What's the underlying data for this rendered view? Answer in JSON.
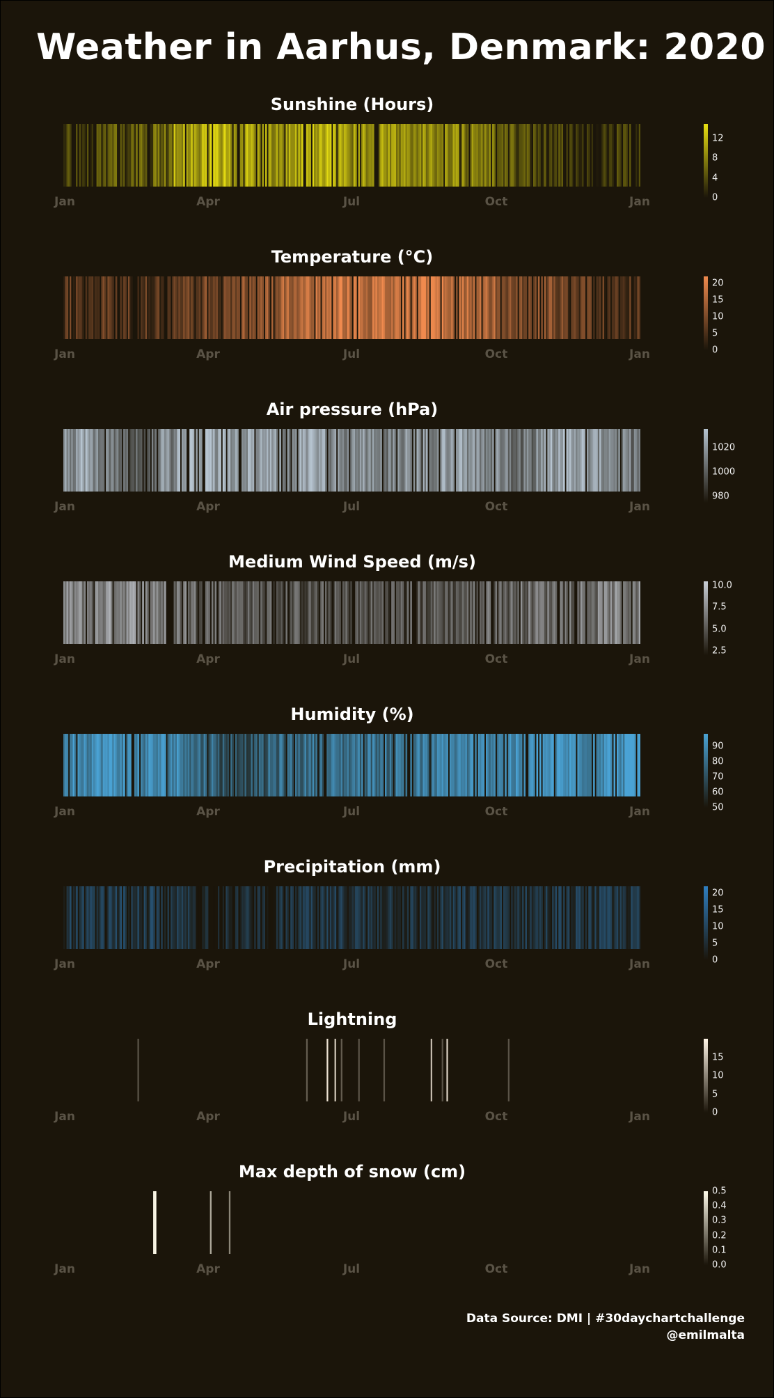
{
  "title": "Weather in Aarhus, Denmark: 2020",
  "caption": {
    "line1": "Data Source: DMI | #30daychartchallenge",
    "line2": "@emilmalta"
  },
  "colors": {
    "background": "#1b150a",
    "low": "#1b150a"
  },
  "chart_data": [
    {
      "type": "heatmap",
      "title": "Sunshine (Hours)",
      "color": "#e8df12",
      "xlabels": [
        "Jan",
        "Apr",
        "Jul",
        "Oct",
        "Jan"
      ],
      "legend_ticks": [
        0,
        4,
        8,
        12
      ],
      "legend_range": [
        0,
        15
      ],
      "pattern": [
        [
          1,
          10,
          0.8
        ],
        [
          11,
          25,
          1.2
        ],
        [
          26,
          35,
          2.5
        ],
        [
          36,
          46,
          1.8
        ],
        [
          47,
          55,
          3.0
        ],
        [
          56,
          70,
          4.0
        ],
        [
          71,
          90,
          10.0
        ],
        [
          91,
          120,
          10.5
        ],
        [
          121,
          150,
          8.5
        ],
        [
          151,
          182,
          10.5
        ],
        [
          183,
          213,
          8.0
        ],
        [
          214,
          244,
          8.0
        ],
        [
          245,
          262,
          6.5
        ],
        [
          263,
          275,
          5.5
        ],
        [
          276,
          285,
          3.0
        ],
        [
          286,
          295,
          2.0
        ],
        [
          296,
          305,
          1.0
        ],
        [
          306,
          322,
          0.5
        ],
        [
          323,
          340,
          0.2
        ],
        [
          341,
          366,
          0.2
        ]
      ],
      "x": [
        1,
        366
      ]
    },
    {
      "type": "heatmap",
      "title": "Temperature (°C)",
      "color": "#ef8a4e",
      "xlabels": [
        "Jan",
        "Apr",
        "Jul",
        "Oct",
        "Jan"
      ],
      "legend_ticks": [
        0,
        5,
        10,
        15,
        20
      ],
      "legend_range": [
        0,
        22
      ],
      "pattern": [
        [
          1,
          20,
          3.0
        ],
        [
          21,
          40,
          3.5
        ],
        [
          41,
          55,
          4.0
        ],
        [
          56,
          70,
          2.5
        ],
        [
          71,
          90,
          4.5
        ],
        [
          91,
          105,
          7.0
        ],
        [
          106,
          121,
          9.0
        ],
        [
          122,
          135,
          10.0
        ],
        [
          136,
          152,
          13.0
        ],
        [
          153,
          166,
          16.0
        ],
        [
          167,
          182,
          16.5
        ],
        [
          183,
          200,
          16.0
        ],
        [
          201,
          212,
          17.0
        ],
        [
          213,
          230,
          19.0
        ],
        [
          231,
          244,
          17.5
        ],
        [
          245,
          258,
          15.0
        ],
        [
          259,
          274,
          12.5
        ],
        [
          275,
          290,
          10.5
        ],
        [
          291,
          305,
          9.5
        ],
        [
          306,
          320,
          7.5
        ],
        [
          321,
          335,
          5.0
        ],
        [
          336,
          352,
          3.5
        ],
        [
          353,
          366,
          2.5
        ]
      ],
      "x": [
        1,
        366
      ]
    },
    {
      "type": "heatmap",
      "title": "Air pressure (hPa)",
      "color": "#b6c4d0",
      "xlabels": [
        "Jan",
        "Apr",
        "Jul",
        "Oct",
        "Jan"
      ],
      "legend_ticks": [
        980,
        1000,
        1020
      ],
      "legend_range": [
        975,
        1035
      ],
      "pattern": [
        [
          1,
          8,
          1015
        ],
        [
          9,
          16,
          1025
        ],
        [
          17,
          26,
          1012
        ],
        [
          27,
          35,
          1008
        ],
        [
          36,
          50,
          995
        ],
        [
          51,
          60,
          1000
        ],
        [
          61,
          72,
          1010
        ],
        [
          73,
          80,
          1020
        ],
        [
          81,
          95,
          1028
        ],
        [
          96,
          104,
          1022
        ],
        [
          105,
          120,
          1018
        ],
        [
          121,
          135,
          1020
        ],
        [
          136,
          150,
          1012
        ],
        [
          151,
          160,
          1022
        ],
        [
          161,
          172,
          1015
        ],
        [
          173,
          185,
          1010
        ],
        [
          186,
          205,
          1012
        ],
        [
          206,
          216,
          1008
        ],
        [
          217,
          226,
          1016
        ],
        [
          227,
          240,
          1013
        ],
        [
          241,
          254,
          1018
        ],
        [
          255,
          268,
          1012
        ],
        [
          269,
          282,
          1008
        ],
        [
          283,
          300,
          1005
        ],
        [
          301,
          315,
          1020
        ],
        [
          316,
          330,
          1024
        ],
        [
          331,
          350,
          1015
        ],
        [
          351,
          366,
          1005
        ]
      ],
      "x": [
        1,
        366
      ]
    },
    {
      "type": "heatmap",
      "title": "Medium Wind Speed (m/s)",
      "color": "#c9ced6",
      "xlabels": [
        "Jan",
        "Apr",
        "Jul",
        "Oct",
        "Jan"
      ],
      "legend_ticks": [
        2.5,
        5.0,
        7.5,
        10.0
      ],
      "legend_range": [
        2.0,
        10.5
      ],
      "pattern": [
        [
          1,
          20,
          6.2
        ],
        [
          21,
          40,
          6.8
        ],
        [
          41,
          60,
          7.0
        ],
        [
          61,
          80,
          5.8
        ],
        [
          81,
          100,
          5.0
        ],
        [
          101,
          120,
          4.5
        ],
        [
          121,
          145,
          4.0
        ],
        [
          146,
          170,
          3.8
        ],
        [
          171,
          200,
          3.8
        ],
        [
          201,
          230,
          4.0
        ],
        [
          231,
          260,
          4.2
        ],
        [
          261,
          290,
          4.8
        ],
        [
          291,
          320,
          5.4
        ],
        [
          321,
          345,
          5.8
        ],
        [
          346,
          366,
          6.2
        ]
      ],
      "x": [
        1,
        366
      ]
    },
    {
      "type": "heatmap",
      "title": "Humidity (%)",
      "color": "#4aa3d5",
      "xlabels": [
        "Jan",
        "Apr",
        "Jul",
        "Oct",
        "Jan"
      ],
      "legend_ticks": [
        50,
        60,
        70,
        80,
        90
      ],
      "legend_range": [
        50,
        98
      ],
      "pattern": [
        [
          1,
          40,
          90
        ],
        [
          41,
          80,
          86
        ],
        [
          81,
          95,
          76
        ],
        [
          96,
          115,
          68
        ],
        [
          116,
          130,
          66
        ],
        [
          131,
          150,
          74
        ],
        [
          151,
          180,
          77
        ],
        [
          181,
          210,
          79
        ],
        [
          211,
          240,
          80
        ],
        [
          241,
          270,
          84
        ],
        [
          271,
          300,
          88
        ],
        [
          301,
          335,
          90
        ],
        [
          336,
          366,
          92
        ]
      ],
      "x": [
        1,
        366
      ]
    },
    {
      "type": "heatmap",
      "title": "Precipitation (mm)",
      "color": "#2f7fc0",
      "xlabels": [
        "Jan",
        "Apr",
        "Jul",
        "Oct",
        "Jan"
      ],
      "legend_ticks": [
        0,
        5,
        10,
        15,
        20
      ],
      "legend_range": [
        0,
        22
      ],
      "pattern": [
        [
          1,
          30,
          4.0
        ],
        [
          31,
          60,
          5.5
        ],
        [
          61,
          85,
          3.0
        ],
        [
          86,
          120,
          1.0
        ],
        [
          121,
          150,
          1.8
        ],
        [
          151,
          180,
          3.5
        ],
        [
          181,
          215,
          3.8
        ],
        [
          216,
          245,
          3.2
        ],
        [
          246,
          275,
          3.8
        ],
        [
          276,
          305,
          4.0
        ],
        [
          306,
          335,
          4.2
        ],
        [
          336,
          366,
          3.8
        ]
      ],
      "x": [
        1,
        366
      ]
    },
    {
      "type": "heatmap",
      "title": "Lightning",
      "color": "#fff5e6",
      "xlabels": [
        "Jan",
        "Apr",
        "Jul",
        "Oct",
        "Jan"
      ],
      "legend_ticks": [
        0,
        5,
        10,
        15
      ],
      "legend_range": [
        0,
        20
      ],
      "events": [
        [
          48,
          3
        ],
        [
          155,
          4
        ],
        [
          168,
          18
        ],
        [
          173,
          15
        ],
        [
          177,
          4
        ],
        [
          188,
          3
        ],
        [
          204,
          3
        ],
        [
          234,
          14
        ],
        [
          241,
          3
        ],
        [
          244,
          16
        ],
        [
          283,
          3
        ]
      ],
      "x": [
        1,
        366
      ]
    },
    {
      "type": "heatmap",
      "title": "Max depth of snow (cm)",
      "color": "#fffbea",
      "xlabels": [
        "Jan",
        "Apr",
        "Jul",
        "Oct",
        "Jan"
      ],
      "legend_ticks": [
        0.0,
        0.1,
        0.2,
        0.3,
        0.4,
        0.5
      ],
      "legend_range": [
        0.0,
        0.5
      ],
      "events": [
        [
          58,
          0.5
        ],
        [
          59,
          0.5
        ],
        [
          94,
          0.3
        ],
        [
          106,
          0.2
        ]
      ],
      "x": [
        1,
        366
      ]
    }
  ]
}
